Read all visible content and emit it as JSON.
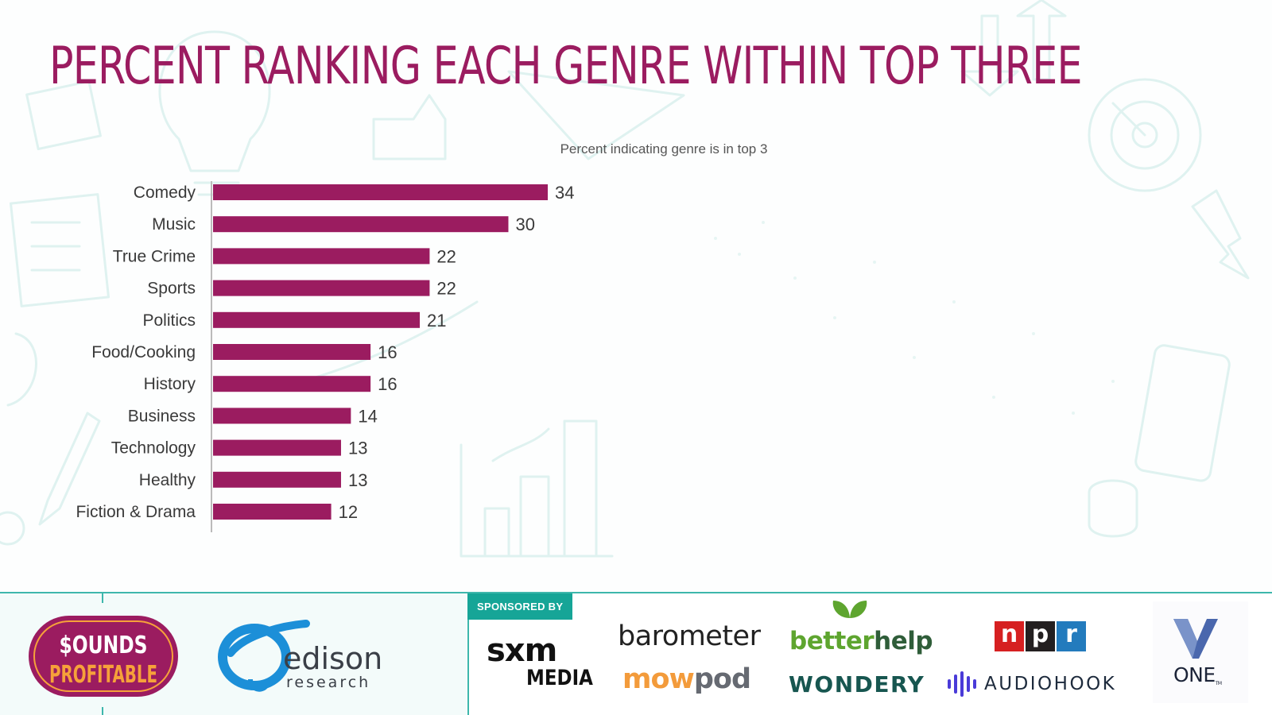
{
  "title": "PERCENT RANKING EACH GENRE WITHIN TOP THREE",
  "chart_data": {
    "type": "bar",
    "orientation": "horizontal",
    "title": "Percent indicating genre is in top 3",
    "categories": [
      "Comedy",
      "Music",
      "True Crime",
      "Sports",
      "Politics",
      "Food/Cooking",
      "History",
      "Business",
      "Technology",
      "Healthy",
      "Fiction & Drama"
    ],
    "values": [
      34,
      30,
      22,
      22,
      21,
      16,
      16,
      14,
      13,
      13,
      12
    ],
    "xlim": [
      0,
      34
    ],
    "bar_color": "#9b1c60",
    "grid": false,
    "data_labels": true
  },
  "footer": {
    "sounds_profitable": {
      "line1": "$OUNDS",
      "line2": "PROFITABLE"
    },
    "edison": {
      "name": "edison",
      "sub": "research"
    },
    "sponsored_by": "SPONSORED BY",
    "sponsors": {
      "sxm": {
        "line1": "sxm",
        "line2": "MEDIA"
      },
      "barometer": "barometer",
      "mowpod": {
        "part1": "mow",
        "part2": "pod"
      },
      "betterhelp": {
        "part1": "better",
        "part2": "help"
      },
      "wondery": "WONDERY",
      "npr": [
        "n",
        "p",
        "r"
      ],
      "audiohook": "AUDIOHOOK",
      "one": "ONE",
      "one_tm": "TM"
    }
  },
  "colors": {
    "accent": "#9b1c60",
    "teal": "#3eb7ac",
    "sponsor_tag": "#16a597"
  }
}
